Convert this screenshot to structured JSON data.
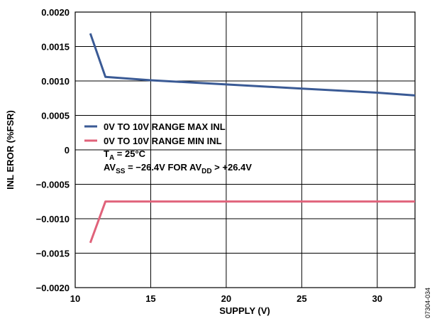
{
  "chart_data": {
    "type": "line",
    "title": "",
    "xlabel": "SUPPLY (V)",
    "ylabel": "INL EROR (%FSR)",
    "xlim": [
      10,
      32.5
    ],
    "ylim": [
      -0.002,
      0.002
    ],
    "x_ticks": [
      10,
      15,
      20,
      25,
      30
    ],
    "x_tick_labels": [
      "10",
      "15",
      "20",
      "25",
      "30"
    ],
    "y_ticks": [
      0.002,
      0.0015,
      0.001,
      0.0005,
      0,
      -0.0005,
      -0.001,
      -0.0015,
      -0.002
    ],
    "y_tick_labels": [
      "0.0020",
      "0.0015",
      "0.0010",
      "0.0005",
      "0",
      "−0.0005",
      "−0.0010",
      "−0.0015",
      "−0.0020"
    ],
    "grid": true,
    "legend_position": "left",
    "series": [
      {
        "name": "0V TO 10V RANGE MAX INL",
        "color": "#3a5a95",
        "x": [
          11,
          12,
          15,
          20,
          25,
          30,
          32.5
        ],
        "y": [
          0.00169,
          0.00106,
          0.00101,
          0.00095,
          0.00089,
          0.00083,
          0.00079
        ]
      },
      {
        "name": "0V TO 10V RANGE MIN INL",
        "color": "#e0627a",
        "x": [
          11,
          12,
          15,
          20,
          25,
          30,
          32.5
        ],
        "y": [
          -0.00135,
          -0.00075,
          -0.00075,
          -0.00075,
          -0.00075,
          -0.00075,
          -0.00075
        ]
      }
    ],
    "annotations": {
      "ta_main": "T",
      "ta_sub": "A",
      "ta_rest": " = 25°C",
      "av_main": "AV",
      "av_sub1": "SS",
      "av_mid": " = −26.4V FOR AV",
      "av_sub2": "DD",
      "av_end": " > +26.4V"
    },
    "figure_number": "07304-034"
  }
}
